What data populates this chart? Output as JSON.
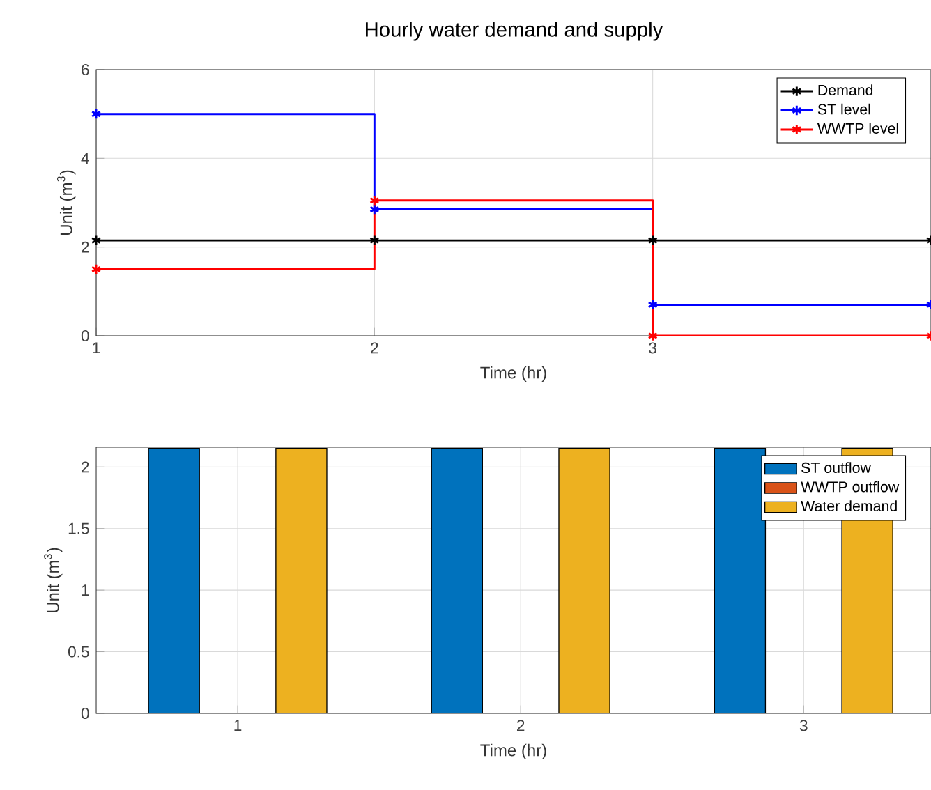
{
  "chart_data": [
    {
      "type": "step",
      "title": "Hourly water demand and supply",
      "xlabel": "Time (hr)",
      "ylabel": "Unit (m$^{3}$)",
      "x": [
        1,
        2,
        3,
        4
      ],
      "xlim": [
        1,
        4
      ],
      "xticks": [
        1,
        2,
        3
      ],
      "ylim": [
        0,
        6
      ],
      "yticks": [
        0,
        2,
        4,
        6
      ],
      "grid": true,
      "legend": "top right",
      "marker": "cross",
      "line_style": "solid",
      "series": [
        {
          "name": "Demand",
          "color": "#000000",
          "values": [
            2.15,
            2.15,
            2.15,
            2.15
          ]
        },
        {
          "name": "ST level",
          "color": "#0000ff",
          "values": [
            5,
            2.85,
            0.7,
            0.7
          ]
        },
        {
          "name": "WWTP level",
          "color": "#ff0000",
          "values": [
            1.5,
            3.05,
            0,
            0
          ]
        }
      ]
    },
    {
      "type": "bar",
      "xlabel": "Time (hr)",
      "ylabel": "Unit (m$^{3}$)",
      "x": [
        1,
        2,
        3
      ],
      "xlim": [
        0.5,
        3.45
      ],
      "xticks": [
        1,
        2,
        3
      ],
      "ylim": [
        0,
        2.16
      ],
      "yticks": [
        0,
        0.5,
        1,
        1.5,
        2
      ],
      "grid": true,
      "legend": "top right",
      "series": [
        {
          "name": "ST outflow",
          "color": "#0072bd",
          "values": [
            2.15,
            2.15,
            2.15
          ]
        },
        {
          "name": "WWTP outflow",
          "color": "#d95319",
          "values": [
            0,
            0,
            0
          ]
        },
        {
          "name": "Water demand",
          "color": "#edb120",
          "values": [
            2.15,
            2.15,
            2.15
          ]
        }
      ]
    }
  ]
}
